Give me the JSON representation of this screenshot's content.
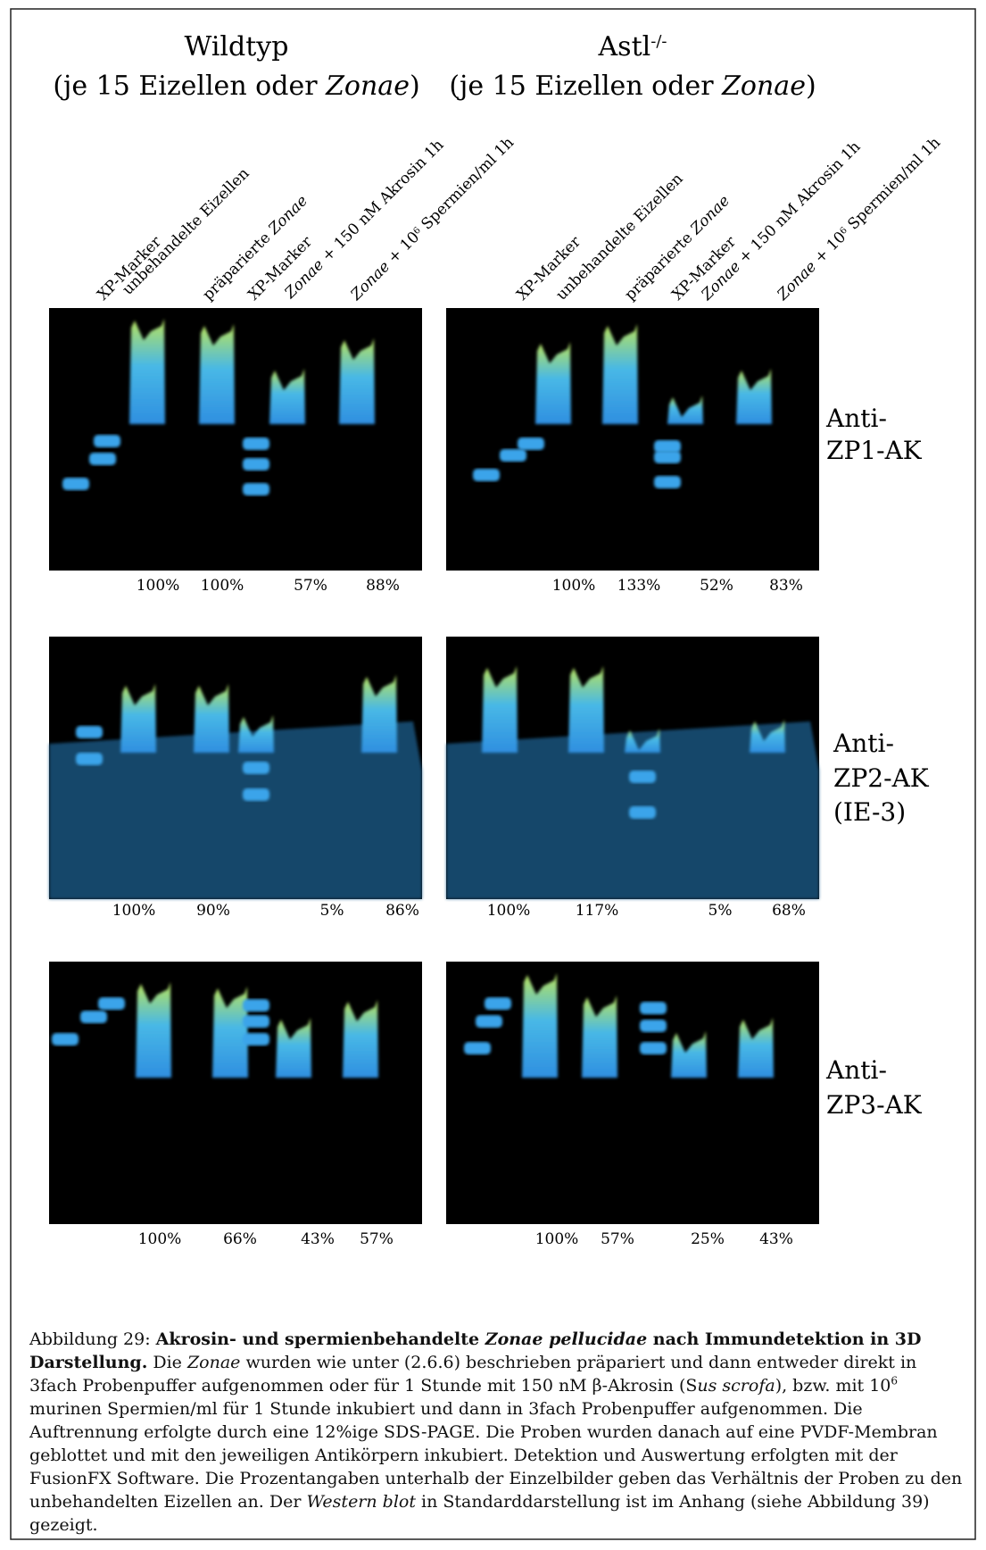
{
  "columns": [
    {
      "title_parts": [
        {
          "text": "Wildtyp"
        }
      ],
      "subtitle_parts": [
        {
          "text": "(je 15 Eizellen oder "
        },
        {
          "text": "Zonae",
          "style": "i"
        },
        {
          "text": ")"
        }
      ],
      "lanes": [
        [
          {
            "text": "XP-Marker"
          }
        ],
        [
          {
            "text": "unbehandelte Eizellen"
          }
        ],
        [
          {
            "text": "präparierte "
          },
          {
            "text": "Zonae",
            "style": "i"
          }
        ],
        [
          {
            "text": "XP-Marker"
          }
        ],
        [
          {
            "text": "Zonae",
            "style": "i"
          },
          {
            "text": " + 150 nM Akrosin 1h"
          }
        ],
        [
          {
            "text": "Zonae",
            "style": "i"
          },
          {
            "text": " + 10"
          },
          {
            "text": "6",
            "style": "sup"
          },
          {
            "text": " Spermien/ml 1h"
          }
        ]
      ],
      "percentages": [
        [
          "100%",
          "100%",
          "57%",
          "88%"
        ],
        [
          "100%",
          "90%",
          "5%",
          "86%"
        ],
        [
          "100%",
          "66%",
          "43%",
          "57%"
        ]
      ]
    },
    {
      "title_parts": [
        {
          "text": "Astl"
        },
        {
          "text": "-/-",
          "style": "sup"
        }
      ],
      "subtitle_parts": [
        {
          "text": "(je 15 Eizellen oder "
        },
        {
          "text": "Zonae",
          "style": "i"
        },
        {
          "text": ")"
        }
      ],
      "lanes": [
        [
          {
            "text": "XP-Marker"
          }
        ],
        [
          {
            "text": "unbehandelte Eizellen"
          }
        ],
        [
          {
            "text": "präparierte "
          },
          {
            "text": "Zonae",
            "style": "i"
          }
        ],
        [
          {
            "text": "XP-Marker"
          }
        ],
        [
          {
            "text": "Zonae",
            "style": "i"
          },
          {
            "text": " + 150 nM Akrosin 1h"
          }
        ],
        [
          {
            "text": "Zonae",
            "style": "i"
          },
          {
            "text": " + 10"
          },
          {
            "text": "6",
            "style": "sup"
          },
          {
            "text": " Spermien/ml 1h"
          }
        ]
      ],
      "percentages": [
        [
          "100%",
          "133%",
          "52%",
          "83%"
        ],
        [
          "100%",
          "117%",
          "5%",
          "68%"
        ],
        [
          "100%",
          "57%",
          "25%",
          "43%"
        ]
      ]
    }
  ],
  "antibodies": [
    [
      "Anti-",
      "ZP1-AK"
    ],
    [
      "Anti-",
      "ZP2-AK",
      "(IE-3)"
    ],
    [
      "Anti-",
      "ZP3-AK"
    ]
  ],
  "caption": [
    {
      "text": "Abbildung 29: "
    },
    {
      "text": "Akrosin- und spermienbehandelte ",
      "style": "b"
    },
    {
      "text": "Zonae pellucidae",
      "style": "bi"
    },
    {
      "text": " nach Immundetektion in 3D Darstellung.",
      "style": "b"
    },
    {
      "text": " Die "
    },
    {
      "text": "Zonae",
      "style": "i"
    },
    {
      "text": " wurden wie unter (2.6.6) beschrieben präpariert und dann entweder direkt in 3fach Probenpuffer aufgenommen oder für 1 Stunde mit 150 nM β-Akrosin (S"
    },
    {
      "text": "us scrofa",
      "style": "i"
    },
    {
      "text": "), bzw. mit 10"
    },
    {
      "text": "6",
      "style": "sup"
    },
    {
      "text": " murinen Spermien/ml für 1 Stunde inkubiert und dann in 3fach Probenpuffer aufgenommen. Die Auftrennung erfolgte durch eine 12%ige SDS-PAGE. Die Proben wurden danach auf eine PVDF-Membran geblottet und mit den jeweiligen Antikörpern inkubiert. Detektion und Auswertung erfolgten mit der FusionFX Software. Die Prozentangaben unterhalb der Einzelbilder geben das Verhältnis der Proben zu den unbehandelten Eizellen an. Der "
    },
    {
      "text": "Western blot",
      "style": "i"
    },
    {
      "text": " in Standarddarstellung ist im Anhang (siehe Abbildung 39) gezeigt."
    }
  ]
}
